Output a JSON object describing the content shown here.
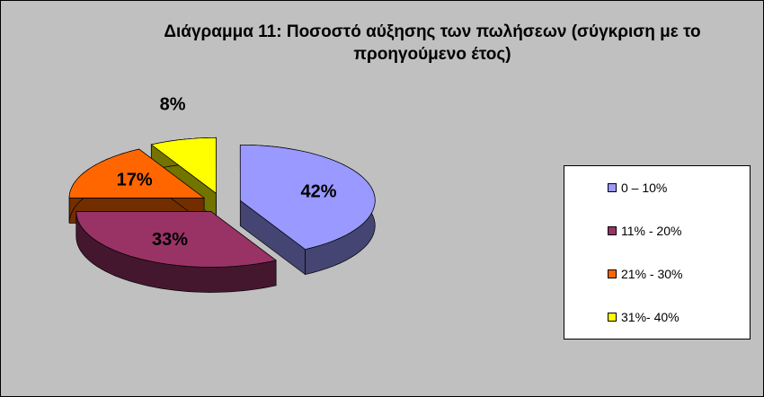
{
  "chart_data": {
    "type": "pie",
    "title": "Διάγραμμα 11: Ποσοστό αύξησης των πωλήσεων (σύγκριση με το προηγούμενο έτος)",
    "categories": [
      "0 – 10%",
      "11% - 20%",
      "21% - 30%",
      "31%- 40%"
    ],
    "values": [
      42,
      33,
      17,
      8
    ],
    "value_labels": [
      "42%",
      "33%",
      "17%",
      "8%"
    ],
    "colors": [
      "#9999ff",
      "#993366",
      "#ff6600",
      "#ffff00"
    ],
    "legend": "right"
  }
}
